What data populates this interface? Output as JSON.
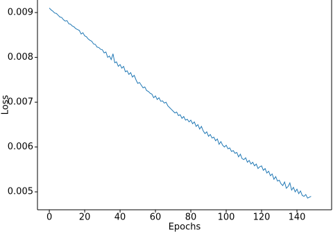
{
  "chart_data": {
    "type": "line",
    "xlabel": "Epochs",
    "ylabel": "Loss",
    "x": [
      0,
      1,
      2,
      3,
      4,
      5,
      6,
      7,
      8,
      9,
      10,
      11,
      12,
      13,
      14,
      15,
      16,
      17,
      18,
      19,
      20,
      21,
      22,
      23,
      24,
      25,
      26,
      27,
      28,
      29,
      30,
      31,
      32,
      33,
      34,
      35,
      36,
      37,
      38,
      39,
      40,
      41,
      42,
      43,
      44,
      45,
      46,
      47,
      48,
      49,
      50,
      51,
      52,
      53,
      54,
      55,
      56,
      57,
      58,
      59,
      60,
      61,
      62,
      63,
      64,
      65,
      66,
      67,
      68,
      69,
      70,
      71,
      72,
      73,
      74,
      75,
      76,
      77,
      78,
      79,
      80,
      81,
      82,
      83,
      84,
      85,
      86,
      87,
      88,
      89,
      90,
      91,
      92,
      93,
      94,
      95,
      96,
      97,
      98,
      99,
      100,
      101,
      102,
      103,
      104,
      105,
      106,
      107,
      108,
      109,
      110,
      111,
      112,
      113,
      114,
      115,
      116,
      117,
      118,
      119,
      120,
      121,
      122,
      123,
      124,
      125,
      126,
      127,
      128,
      129,
      130,
      131,
      132,
      133,
      134,
      135,
      136,
      137,
      138,
      139,
      140,
      141,
      142,
      143,
      144,
      145,
      146,
      147,
      148
    ],
    "series": [
      {
        "color": "#1f77b4",
        "values": [
          0.0091,
          0.00906,
          0.00903,
          0.00899,
          0.00898,
          0.00894,
          0.0089,
          0.00889,
          0.00884,
          0.00881,
          0.00882,
          0.00875,
          0.00874,
          0.0087,
          0.00868,
          0.00864,
          0.00862,
          0.0086,
          0.00852,
          0.00855,
          0.00848,
          0.00846,
          0.00841,
          0.00838,
          0.00836,
          0.0083,
          0.00829,
          0.00823,
          0.00822,
          0.00818,
          0.00817,
          0.0081,
          0.00812,
          0.008,
          0.00803,
          0.00795,
          0.00808,
          0.00788,
          0.0079,
          0.0078,
          0.00784,
          0.00776,
          0.0078,
          0.00768,
          0.0077,
          0.00762,
          0.00766,
          0.00756,
          0.0076,
          0.0075,
          0.00742,
          0.00744,
          0.00738,
          0.00732,
          0.00734,
          0.00726,
          0.00724,
          0.0072,
          0.00718,
          0.0071,
          0.00714,
          0.00706,
          0.0071,
          0.00702,
          0.00703,
          0.00698,
          0.007,
          0.00692,
          0.00688,
          0.00684,
          0.0068,
          0.00676,
          0.00678,
          0.0067,
          0.00672,
          0.00664,
          0.00668,
          0.0066,
          0.00662,
          0.00656,
          0.0066,
          0.00652,
          0.00656,
          0.00646,
          0.0065,
          0.0064,
          0.00646,
          0.00636,
          0.0063,
          0.00634,
          0.00624,
          0.00628,
          0.0062,
          0.00622,
          0.00614,
          0.00618,
          0.00606,
          0.00612,
          0.00604,
          0.006,
          0.00604,
          0.00596,
          0.00598,
          0.0059,
          0.00592,
          0.00586,
          0.00588,
          0.00578,
          0.00584,
          0.00574,
          0.00572,
          0.00576,
          0.00566,
          0.0057,
          0.00562,
          0.00566,
          0.00558,
          0.00562,
          0.00552,
          0.00556,
          0.00558,
          0.00548,
          0.00552,
          0.00542,
          0.00546,
          0.00536,
          0.0054,
          0.00528,
          0.00534,
          0.00524,
          0.00526,
          0.00518,
          0.00514,
          0.00522,
          0.00508,
          0.00512,
          0.0052,
          0.00504,
          0.0051,
          0.005,
          0.00506,
          0.00496,
          0.00502,
          0.00492,
          0.0049,
          0.00494,
          0.00486,
          0.00488,
          0.0049
        ]
      }
    ],
    "xlim": [
      -6.7,
      159.6
    ],
    "ylim": [
      0.0046,
      0.00928
    ],
    "xticks": [
      0,
      20,
      40,
      60,
      80,
      100,
      120,
      140
    ],
    "yticks": [
      0.005,
      0.006,
      0.007,
      0.008,
      0.009
    ]
  }
}
